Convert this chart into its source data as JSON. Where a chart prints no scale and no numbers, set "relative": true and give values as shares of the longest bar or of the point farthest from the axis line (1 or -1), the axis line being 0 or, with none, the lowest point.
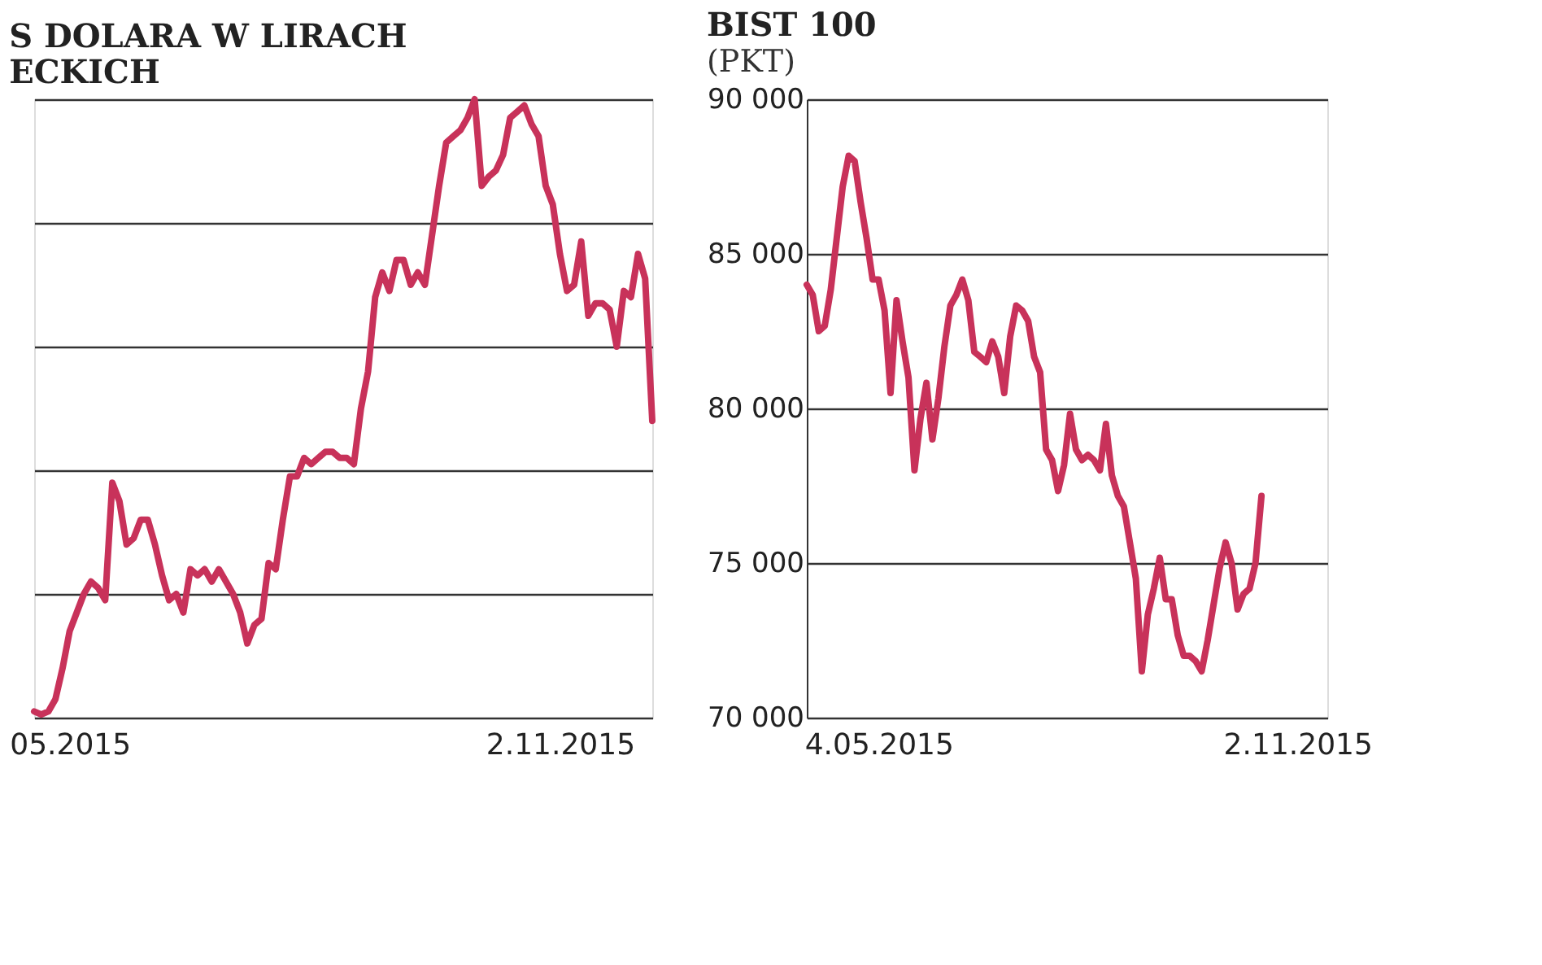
{
  "chart_data": [
    {
      "type": "line",
      "title": "S DOLARA W LIRACH\nECKICH",
      "relative": true,
      "grid": "y",
      "tick_labels": "x",
      "categories": [
        null,
        null,
        null,
        null,
        null,
        "05.2015",
        null,
        null,
        null,
        null,
        null,
        null,
        null,
        null,
        null,
        null,
        null,
        null,
        null,
        null,
        null,
        null,
        null,
        null,
        null,
        null,
        null,
        null,
        null,
        null,
        null,
        null,
        null,
        null,
        null,
        null,
        null,
        null,
        null,
        null,
        null,
        null,
        null,
        null,
        null,
        null,
        null,
        null,
        null,
        null,
        null,
        null,
        null,
        null,
        null,
        null,
        null,
        null,
        null,
        null,
        null,
        null,
        null,
        null,
        null,
        null,
        null,
        null,
        null,
        null,
        null,
        null,
        null,
        null,
        "2.11.2015",
        null,
        null,
        null,
        null,
        null,
        null,
        null,
        null,
        null,
        null,
        null,
        null,
        null
      ],
      "series": [
        {
          "color": "#c8325a",
          "values": [
            0.01,
            0.005,
            0.01,
            0.03,
            0.08,
            0.14,
            0.17,
            0.2,
            0.22,
            0.21,
            0.19,
            0.38,
            0.35,
            0.28,
            0.29,
            0.32,
            0.32,
            0.28,
            0.23,
            0.19,
            0.2,
            0.17,
            0.24,
            0.23,
            0.24,
            0.22,
            0.24,
            0.22,
            0.2,
            0.17,
            0.12,
            0.15,
            0.16,
            0.25,
            0.24,
            0.32,
            0.39,
            0.39,
            0.42,
            0.41,
            0.42,
            0.43,
            0.43,
            0.42,
            0.42,
            0.41,
            0.5,
            0.56,
            0.68,
            0.72,
            0.69,
            0.74,
            0.74,
            0.7,
            0.72,
            0.7,
            0.78,
            0.86,
            0.93,
            0.94,
            0.95,
            0.97,
            1,
            0.86,
            0.875,
            0.885,
            0.91,
            0.97,
            0.98,
            0.99,
            0.96,
            0.94,
            0.86,
            0.83,
            0.75,
            0.69,
            0.7,
            0.77,
            0.65,
            0.67,
            0.67,
            0.66,
            0.6,
            0.69,
            0.68,
            0.75,
            0.71,
            0.48
          ]
        }
      ]
    },
    {
      "type": "line",
      "title": "BIST 100",
      "subtitle": "(PKT)",
      "grid": "y",
      "ylim": [
        70000,
        90000
      ],
      "yticks": [
        {
          "value": 70000,
          "label": "70 000"
        },
        {
          "value": 75000,
          "label": "75 000"
        },
        {
          "value": 80000,
          "label": "80 000"
        },
        {
          "value": 85000,
          "label": "85 000"
        },
        {
          "value": 90000,
          "label": "90 000"
        }
      ],
      "categories": [
        null,
        null,
        null,
        null,
        null,
        null,
        null,
        null,
        null,
        null,
        null,
        null,
        "4.05.2015",
        null,
        null,
        null,
        null,
        null,
        null,
        null,
        null,
        null,
        null,
        null,
        null,
        null,
        null,
        null,
        null,
        null,
        null,
        null,
        null,
        null,
        null,
        null,
        null,
        null,
        null,
        null,
        null,
        null,
        null,
        null,
        null,
        null,
        null,
        null,
        null,
        null,
        null,
        null,
        null,
        null,
        null,
        null,
        null,
        null,
        null,
        null,
        null,
        null,
        null,
        null,
        null,
        null,
        null,
        null,
        null,
        null,
        null,
        null,
        null,
        null,
        null,
        null,
        null,
        null,
        null,
        null,
        null,
        null,
        "2.11.2015",
        null,
        null,
        null,
        null,
        null
      ],
      "series": [
        {
          "color": "#c8325a",
          "values": [
            84000,
            83670,
            82500,
            82670,
            83830,
            85500,
            87170,
            88170,
            88000,
            86670,
            85500,
            84170,
            84170,
            83170,
            80500,
            83500,
            82170,
            81000,
            78000,
            79670,
            80830,
            79000,
            80330,
            82000,
            83330,
            83670,
            84170,
            83500,
            81830,
            81670,
            81500,
            82170,
            81670,
            80500,
            82330,
            83330,
            83170,
            82830,
            81670,
            81170,
            78670,
            78330,
            77330,
            78170,
            79830,
            78670,
            78330,
            78500,
            78330,
            78000,
            79500,
            77830,
            77170,
            76830,
            75670,
            74500,
            71500,
            73330,
            74170,
            75170,
            73830,
            73830,
            72670,
            72000,
            72000,
            71830,
            71500,
            72500,
            73670,
            74830,
            75670,
            75000,
            73500,
            74000,
            74170,
            75000,
            77170,
            null,
            null,
            null,
            null,
            null,
            null,
            null,
            null,
            null,
            null,
            null
          ]
        }
      ]
    }
  ]
}
